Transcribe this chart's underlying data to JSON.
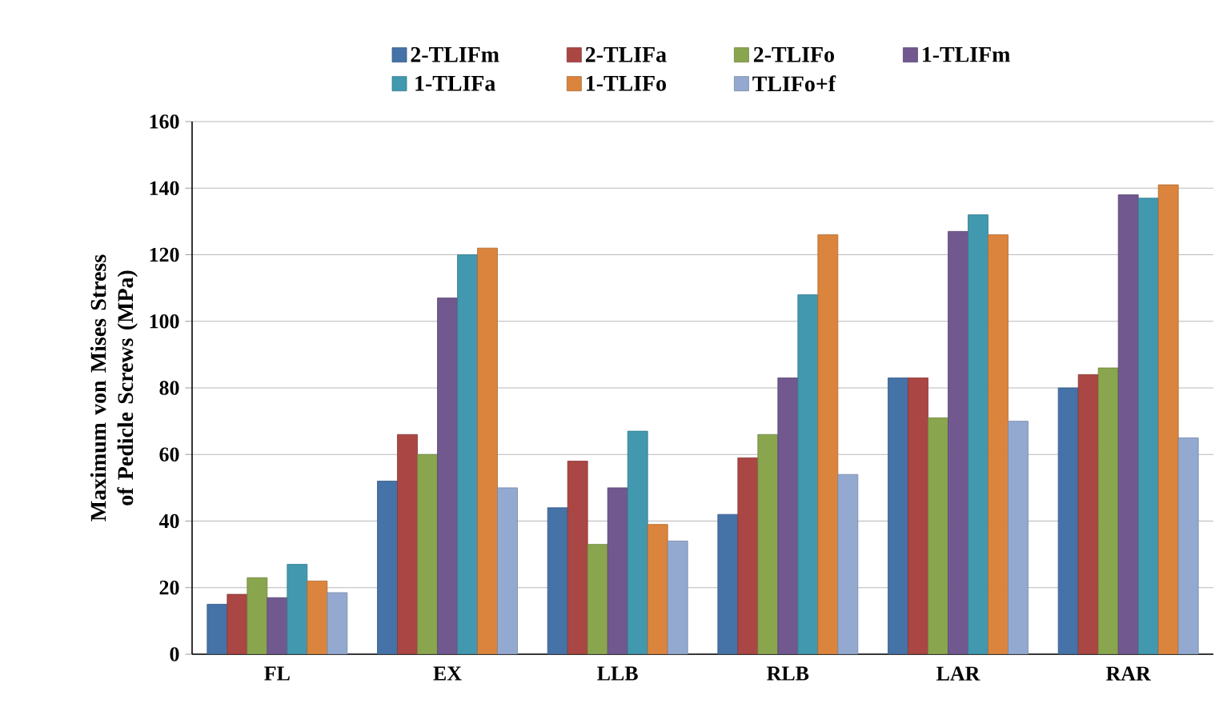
{
  "chart_data": {
    "type": "bar",
    "ylabel": "Maximum von Mises Stress of Pedicle Screws (MPa)",
    "categories": [
      "FL",
      "EX",
      "LLB",
      "RLB",
      "LAR",
      "RAR"
    ],
    "series": [
      {
        "name": "2-TLIFm",
        "color": "#4572a7",
        "values": [
          15,
          52,
          44,
          42,
          83,
          80
        ]
      },
      {
        "name": "2-TLIFa",
        "color": "#aa4643",
        "values": [
          18,
          66,
          58,
          59,
          83,
          84
        ]
      },
      {
        "name": "2-TLIFo",
        "color": "#89a54e",
        "values": [
          23,
          60,
          33,
          66,
          71,
          86
        ]
      },
      {
        "name": "1-TLIFm",
        "color": "#71588f",
        "values": [
          17,
          107,
          50,
          83,
          127,
          138
        ]
      },
      {
        "name": "1-TLIFa",
        "color": "#4198af",
        "values": [
          27,
          120,
          67,
          108,
          132,
          137
        ]
      },
      {
        "name": "1-TLIFo",
        "color": "#db843d",
        "values": [
          22,
          122,
          39,
          126,
          126,
          141
        ]
      },
      {
        "name": "TLIFo+f",
        "color": "#93a9cf",
        "values": [
          18.5,
          50,
          34,
          54,
          70,
          65
        ]
      }
    ],
    "ylim": [
      0,
      160
    ],
    "yticks": [
      0,
      20,
      40,
      60,
      80,
      100,
      120,
      140,
      160
    ],
    "grid": "y",
    "legend": "top"
  }
}
